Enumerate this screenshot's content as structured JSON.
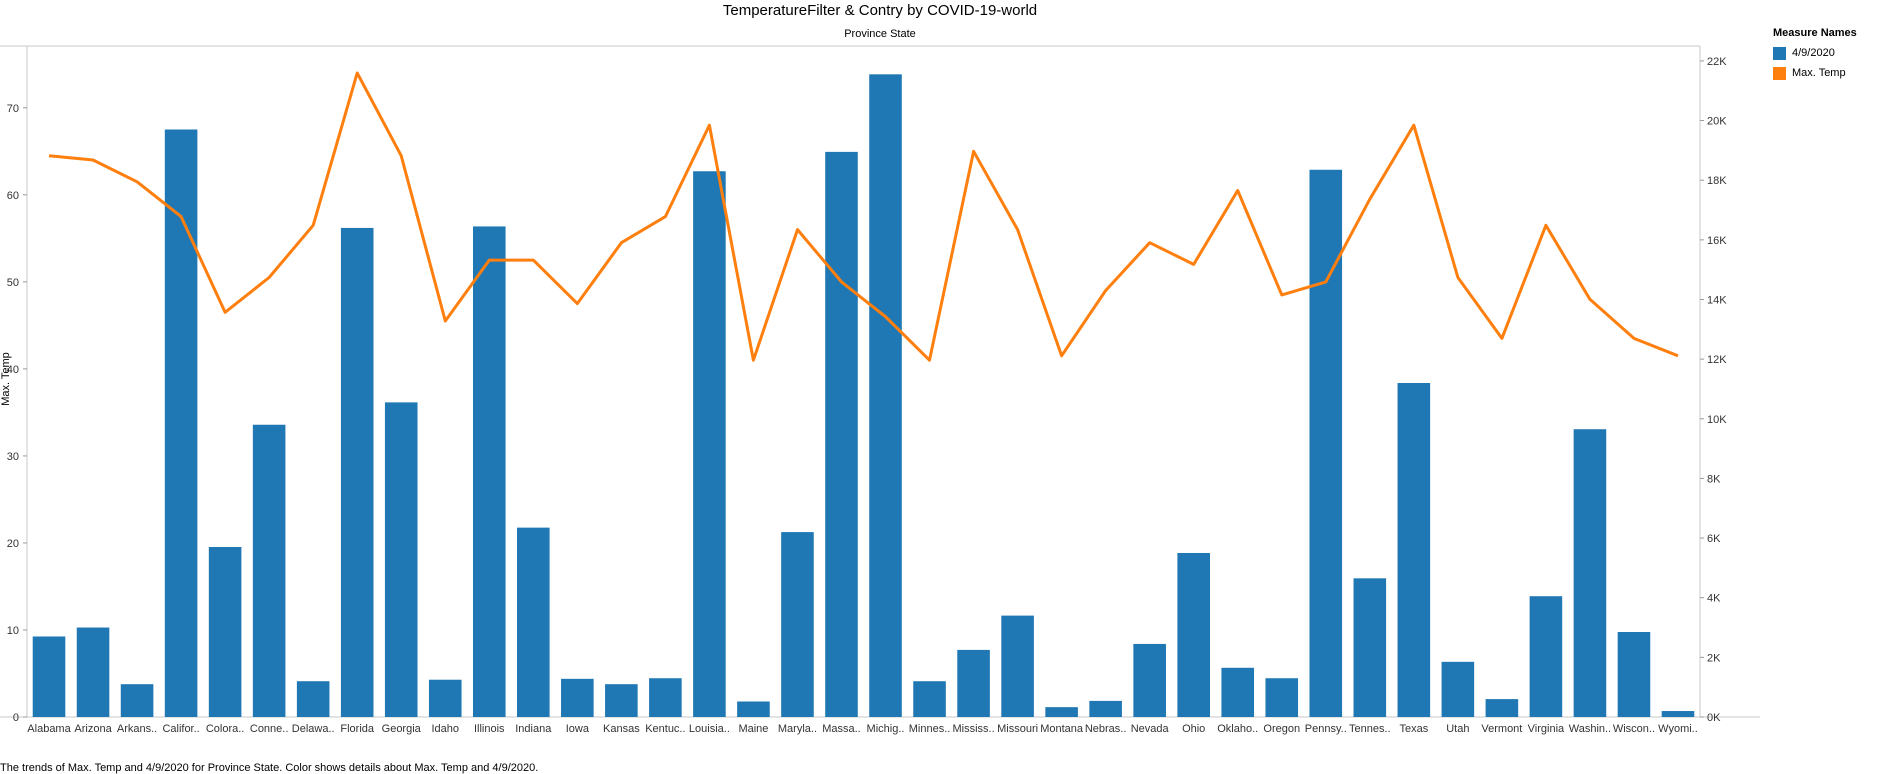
{
  "chart_data": {
    "type": "bar",
    "title": "TemperatureFilter & Contry by COVID-19-world",
    "x_header": "Province State",
    "ylabel": "Max. Temp",
    "y_right_label": "",
    "caption": "The trends of Max. Temp and 4/9/2020 for Province State.  Color shows details about Max. Temp and 4/9/2020.",
    "legend_title": "Measure Names",
    "categories": [
      "Alabama",
      "Arizona",
      "Arkans..",
      "Califor..",
      "Colora..",
      "Conne..",
      "Delawa..",
      "Florida",
      "Georgia",
      "Idaho",
      "Illinois",
      "Indiana",
      "Iowa",
      "Kansas",
      "Kentuc..",
      "Louisia..",
      "Maine",
      "Maryla..",
      "Massa..",
      "Michig..",
      "Minnes..",
      "Mississ..",
      "Missouri",
      "Montana",
      "Nebras..",
      "Nevada",
      "Ohio",
      "Oklaho..",
      "Oregon",
      "Pennsy..",
      "Tennes..",
      "Texas",
      "Utah",
      "Vermont",
      "Virginia",
      "Washin..",
      "Wiscon..",
      "Wyomi.."
    ],
    "series": [
      {
        "name": "4/9/2020",
        "type": "bar",
        "axis": "right",
        "color": "#1f77b4",
        "values": [
          2700,
          3000,
          1100,
          19700,
          5700,
          9800,
          1200,
          16400,
          10550,
          1250,
          16450,
          6350,
          1280,
          1100,
          1300,
          18300,
          520,
          6200,
          18950,
          21550,
          1200,
          2250,
          3400,
          330,
          540,
          2450,
          5500,
          1650,
          1300,
          18350,
          4650,
          11200,
          1850,
          600,
          4050,
          9650,
          2850,
          200
        ]
      },
      {
        "name": "Max. Temp",
        "type": "line",
        "axis": "left",
        "color": "#ff7f0e",
        "values": [
          64.5,
          64,
          61.5,
          57.5,
          46.5,
          50.5,
          56.5,
          74,
          64.5,
          45.5,
          52.5,
          52.5,
          47.5,
          54.5,
          57.5,
          68,
          41,
          56,
          50,
          46,
          41,
          65,
          56,
          41.5,
          49,
          54.5,
          52,
          60.5,
          48.5,
          50,
          59.5,
          68,
          50.5,
          43.5,
          56.5,
          48,
          43.5,
          41.5
        ]
      }
    ],
    "ylim_left": [
      0,
      77.1
    ],
    "ylim_right": [
      0,
      22500
    ],
    "left_ticks": [
      "0",
      "10",
      "20",
      "30",
      "40",
      "50",
      "60",
      "70"
    ],
    "right_ticks": [
      "0K",
      "2K",
      "4K",
      "6K",
      "8K",
      "10K",
      "12K",
      "14K",
      "16K",
      "18K",
      "20K",
      "22K"
    ],
    "grid": false,
    "legend_position": "top-right"
  }
}
